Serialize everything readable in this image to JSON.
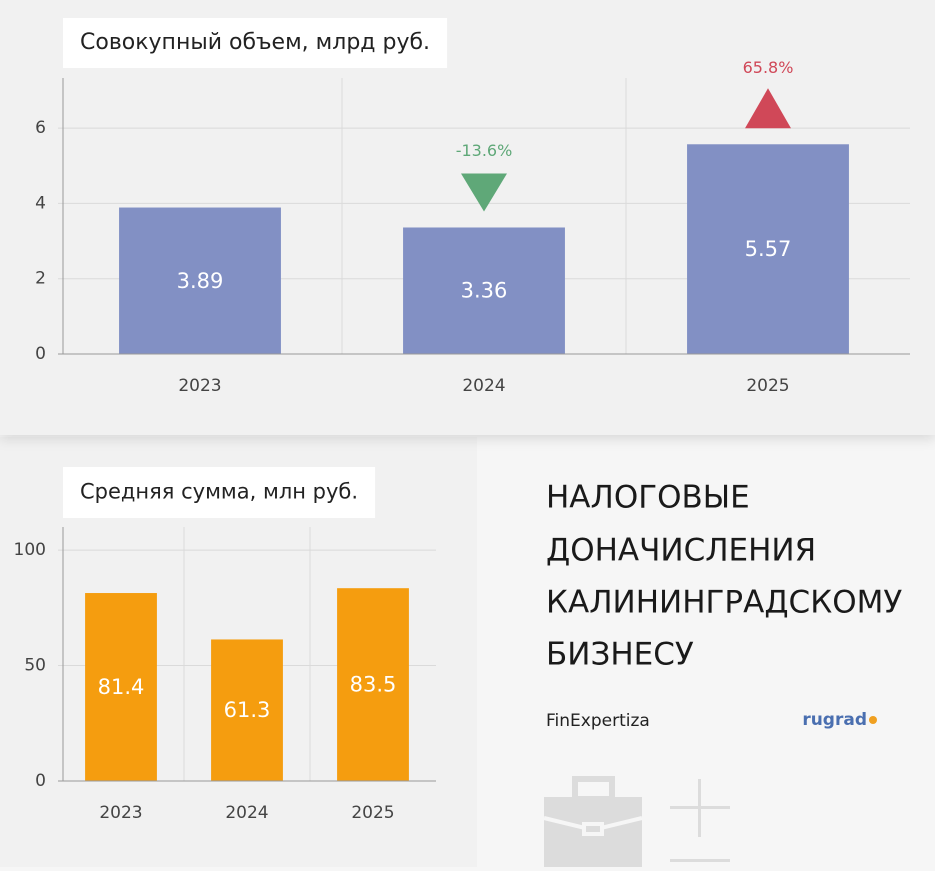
{
  "chart_data": [
    {
      "type": "bar",
      "title": "Совокупный объем, млрд руб.",
      "categories": [
        "2023",
        "2024",
        "2025"
      ],
      "values": [
        3.89,
        3.36,
        5.57
      ],
      "color": "#8290c4",
      "changes": [
        null,
        -13.6,
        65.8
      ],
      "change_labels": [
        null,
        "-13.6%",
        "65.8%"
      ],
      "up_color": "#d04858",
      "down_color": "#5fa878",
      "ylim": [
        0,
        7.33
      ],
      "yticks": [
        0,
        2,
        4,
        6
      ],
      "grid": true
    },
    {
      "type": "bar",
      "title": "Средняя сумма, млн руб.",
      "categories": [
        "2023",
        "2024",
        "2025"
      ],
      "values": [
        81.4,
        61.3,
        83.5
      ],
      "color": "#f59d0f",
      "ylim": [
        0,
        110
      ],
      "yticks": [
        0,
        50,
        100
      ],
      "grid": true
    }
  ],
  "headline": [
    "НАЛОГОВЫЕ",
    "ДОНАЧИСЛЕНИЯ",
    "КАЛИНИНГРАДСКОМУ",
    "БИЗНЕСУ"
  ],
  "source": "FinExpertiza",
  "brand": "rugrad"
}
